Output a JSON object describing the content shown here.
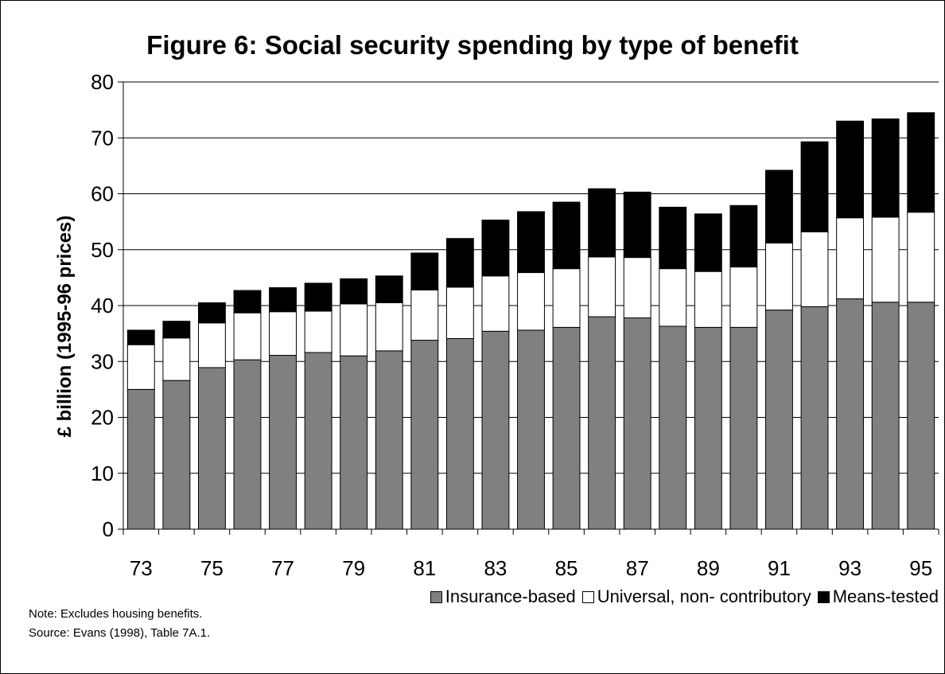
{
  "colors": {
    "insurance": "#808080",
    "universal": "#ffffff",
    "means": "#000000"
  },
  "chart_data": {
    "type": "bar",
    "stacked": true,
    "title": "Figure 6: Social security spending by type of benefit",
    "ylabel": "£ billion (1995-96 prices)",
    "xlabel": "",
    "ylim": [
      0,
      80
    ],
    "yticks": [
      "0",
      "10",
      "20",
      "30",
      "40",
      "50",
      "60",
      "70",
      "80"
    ],
    "grid": true,
    "legend_position": "bottom-right",
    "categories": [
      "73",
      "74",
      "75",
      "76",
      "77",
      "78",
      "79",
      "80",
      "81",
      "82",
      "83",
      "84",
      "85",
      "86",
      "87",
      "88",
      "89",
      "90",
      "91",
      "92",
      "93",
      "94",
      "95"
    ],
    "tick_labels": [
      "73",
      "",
      "75",
      "",
      "77",
      "",
      "79",
      "",
      "81",
      "",
      "83",
      "",
      "85",
      "",
      "87",
      "",
      "89",
      "",
      "91",
      "",
      "93",
      "",
      "95"
    ],
    "series": [
      {
        "name": "Insurance-based",
        "values": [
          25.0,
          26.6,
          28.9,
          30.3,
          31.1,
          31.6,
          31.0,
          31.9,
          33.8,
          34.1,
          35.4,
          35.6,
          36.1,
          38.0,
          37.8,
          36.3,
          36.1,
          36.1,
          39.2,
          39.8,
          41.2,
          40.6,
          40.6
        ]
      },
      {
        "name": "Universal, non- contributory",
        "values": [
          8.0,
          7.6,
          8.0,
          8.4,
          7.8,
          7.4,
          9.3,
          8.6,
          9.0,
          9.2,
          9.9,
          10.3,
          10.5,
          10.7,
          10.8,
          10.3,
          10.0,
          10.8,
          12.0,
          13.4,
          14.5,
          15.2,
          16.1
        ]
      },
      {
        "name": "Means-tested",
        "values": [
          2.6,
          3.0,
          3.6,
          4.0,
          4.3,
          5.0,
          4.5,
          4.8,
          6.6,
          8.7,
          10.0,
          10.9,
          11.9,
          12.2,
          11.7,
          11.0,
          10.3,
          11.0,
          13.0,
          16.1,
          17.3,
          17.6,
          17.8
        ]
      }
    ]
  },
  "notes": {
    "note": "Note: Excludes housing benefits.",
    "source": "Source: Evans (1998), Table 7A.1."
  }
}
